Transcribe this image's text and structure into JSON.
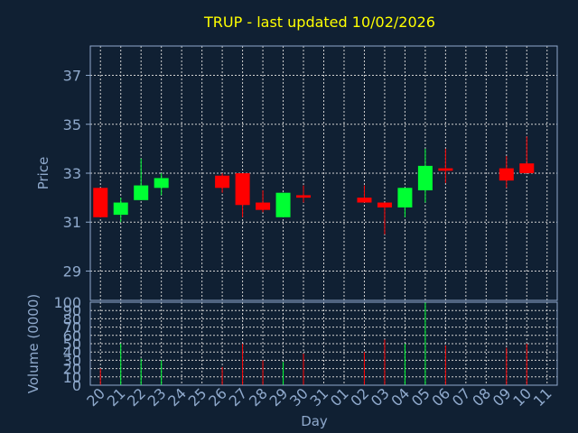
{
  "colors": {
    "background": "#102033",
    "title": "#ffff00",
    "axis_text": "#8fa9cc",
    "frame": "#8fa9cc",
    "grid": "#d0d0d0",
    "up": "#00ff33",
    "down": "#ff0000"
  },
  "chart_data": [
    {
      "type": "candlestick",
      "title": "TRUP - last updated 10/02/2026",
      "ylabel": "Price",
      "ylim": [
        27.8,
        38.2
      ],
      "yticks": [
        "29",
        "31",
        "33",
        "35",
        "37"
      ],
      "grid": true,
      "candles": [
        {
          "x": "20",
          "open": 32.4,
          "high": 32.4,
          "low": 31.2,
          "close": 31.2
        },
        {
          "x": "21",
          "open": 31.3,
          "high": 32.0,
          "low": 31.0,
          "close": 31.8
        },
        {
          "x": "22",
          "open": 31.9,
          "high": 33.6,
          "low": 31.9,
          "close": 32.5
        },
        {
          "x": "23",
          "open": 32.4,
          "high": 33.0,
          "low": 32.1,
          "close": 32.8
        },
        {
          "x": "26",
          "open": 32.9,
          "high": 33.0,
          "low": 32.2,
          "close": 32.4
        },
        {
          "x": "27",
          "open": 33.0,
          "high": 33.0,
          "low": 31.2,
          "close": 31.7
        },
        {
          "x": "28",
          "open": 31.8,
          "high": 32.3,
          "low": 31.4,
          "close": 31.5
        },
        {
          "x": "29",
          "open": 31.2,
          "high": 32.2,
          "low": 31.2,
          "close": 32.2
        },
        {
          "x": "30",
          "open": 32.1,
          "high": 32.5,
          "low": 31.8,
          "close": 32.0
        },
        {
          "x": "02",
          "open": 32.0,
          "high": 32.5,
          "low": 31.8,
          "close": 31.8
        },
        {
          "x": "03",
          "open": 31.8,
          "high": 31.8,
          "low": 30.5,
          "close": 31.6
        },
        {
          "x": "04",
          "open": 31.6,
          "high": 32.4,
          "low": 31.2,
          "close": 32.4
        },
        {
          "x": "05",
          "open": 32.3,
          "high": 34.0,
          "low": 31.8,
          "close": 33.3
        },
        {
          "x": "06",
          "open": 33.2,
          "high": 34.0,
          "low": 32.6,
          "close": 33.1
        },
        {
          "x": "09",
          "open": 33.2,
          "high": 33.7,
          "low": 32.4,
          "close": 32.7
        },
        {
          "x": "10",
          "open": 33.4,
          "high": 34.5,
          "low": 33.0,
          "close": 33.0
        }
      ]
    },
    {
      "type": "bar",
      "xlabel": "Day",
      "ylabel": "Volume (0000)",
      "ylim": [
        0,
        100
      ],
      "yticks": [
        "0",
        "10",
        "20",
        "30",
        "40",
        "50",
        "60",
        "70",
        "80",
        "90",
        "100"
      ],
      "categories": [
        "20",
        "21",
        "22",
        "23",
        "24",
        "25",
        "26",
        "27",
        "28",
        "29",
        "30",
        "31",
        "01",
        "02",
        "03",
        "04",
        "05",
        "06",
        "07",
        "08",
        "09",
        "10",
        "11"
      ],
      "grid": true,
      "bars": [
        {
          "x": "20",
          "value": 20,
          "direction": "down"
        },
        {
          "x": "21",
          "value": 50,
          "direction": "up"
        },
        {
          "x": "22",
          "value": 32,
          "direction": "up"
        },
        {
          "x": "23",
          "value": 30,
          "direction": "up"
        },
        {
          "x": "26",
          "value": 22,
          "direction": "down"
        },
        {
          "x": "27",
          "value": 50,
          "direction": "down"
        },
        {
          "x": "28",
          "value": 30,
          "direction": "down"
        },
        {
          "x": "29",
          "value": 28,
          "direction": "up"
        },
        {
          "x": "30",
          "value": 38,
          "direction": "down"
        },
        {
          "x": "02",
          "value": 40,
          "direction": "down"
        },
        {
          "x": "03",
          "value": 55,
          "direction": "down"
        },
        {
          "x": "04",
          "value": 50,
          "direction": "up"
        },
        {
          "x": "05",
          "value": 100,
          "direction": "up"
        },
        {
          "x": "06",
          "value": 48,
          "direction": "down"
        },
        {
          "x": "09",
          "value": 45,
          "direction": "down"
        },
        {
          "x": "10",
          "value": 50,
          "direction": "down"
        }
      ]
    }
  ]
}
